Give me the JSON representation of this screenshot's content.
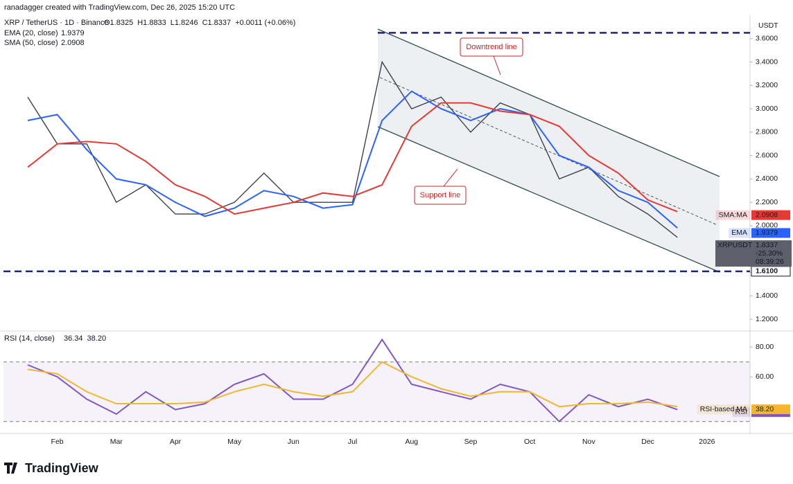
{
  "header": {
    "credit": "ranadagger created with TradingView.com, Dec 26, 2025 15:20 UTC",
    "symbol": "XRP / TetherUS · 1D · Binance",
    "ohlc": [
      "O1.8325",
      "H1.8833",
      "L1.8246",
      "C1.8337",
      "+0.0011 (+0.06%)"
    ],
    "currency": "USDT",
    "logo": "TradingView"
  },
  "chart_data": [
    {
      "type": "line",
      "title": "XRPUSDT",
      "categories": [
        null,
        "Feb",
        null,
        "Mar",
        null,
        "Apr",
        null,
        "May",
        null,
        "Jun",
        null,
        "Jul",
        null,
        "Aug",
        null,
        "Sep",
        null,
        "Oct",
        null,
        "Nov",
        null,
        "Dec",
        null,
        "2026"
      ],
      "ylim": [
        1.147,
        3.8
      ],
      "yticks": [
        {
          "value": 1.2,
          "label": "1.2000"
        },
        {
          "value": 1.4,
          "label": "1.4000"
        },
        {
          "value": 1.6,
          "label": "1.6000"
        },
        {
          "value": 1.8,
          "label": "1.8000"
        },
        {
          "value": 2.0,
          "label": "2.0000"
        },
        {
          "value": 2.2,
          "label": "2.2000"
        },
        {
          "value": 2.4,
          "label": "2.4000"
        },
        {
          "value": 2.6,
          "label": "2.6000"
        },
        {
          "value": 2.8,
          "label": "2.8000"
        },
        {
          "value": 3.0,
          "label": "3.0000"
        },
        {
          "value": 3.2,
          "label": "3.2000"
        },
        {
          "value": 3.4,
          "label": "3.4000"
        },
        {
          "value": 3.6,
          "label": "3.6000"
        }
      ],
      "series": [
        {
          "name": "XRPUSDT",
          "color": "#3a3f4b",
          "values": [
            3.1,
            2.7,
            2.7,
            2.2,
            2.35,
            2.1,
            2.1,
            2.2,
            2.45,
            2.2,
            2.2,
            2.2,
            3.4,
            3.0,
            3.1,
            2.8,
            3.05,
            2.95,
            2.4,
            2.5,
            2.25,
            2.1,
            1.9,
            null
          ],
          "last": 1.8337,
          "change": "-25.30%",
          "countdown": "08:39:26"
        },
        {
          "name": "EMA (20, close)",
          "badge": "EMA",
          "color": "#2962ff",
          "last": 1.9379,
          "values": [
            2.9,
            2.95,
            2.65,
            2.4,
            2.35,
            2.2,
            2.08,
            2.15,
            2.3,
            2.25,
            2.15,
            2.18,
            2.9,
            3.15,
            3.0,
            2.9,
            3.0,
            2.95,
            2.6,
            2.5,
            2.3,
            2.2,
            1.98,
            null
          ]
        },
        {
          "name": "SMA (50, close)",
          "badge": "SMA:MA",
          "color": "#e53935",
          "last": 2.0908,
          "values": [
            2.5,
            2.7,
            2.72,
            2.7,
            2.55,
            2.35,
            2.25,
            2.1,
            2.15,
            2.2,
            2.28,
            2.25,
            2.35,
            2.85,
            3.05,
            3.05,
            2.98,
            2.95,
            2.85,
            2.6,
            2.45,
            2.22,
            2.12,
            null
          ]
        }
      ],
      "resistance": 3.65,
      "support": {
        "value": 1.61,
        "label": "1.6100"
      },
      "annotations": [
        "Downtrend line",
        "Support line"
      ]
    },
    {
      "type": "line",
      "title": "RSI (14, close)",
      "ylim": [
        22,
        88
      ],
      "yticks": [
        {
          "value": 60,
          "label": "60.00"
        },
        {
          "value": 80,
          "label": "80.00"
        }
      ],
      "bands": [
        30,
        70
      ],
      "series": [
        {
          "name": "RSI",
          "color": "#7e57c2",
          "last": 36.34,
          "values": [
            68,
            60,
            45,
            35,
            50,
            38,
            42,
            55,
            62,
            45,
            45,
            55,
            85,
            55,
            50,
            45,
            55,
            50,
            30,
            48,
            40,
            45,
            38,
            null
          ]
        },
        {
          "name": "RSI-based MA",
          "color": "#f2b632",
          "last": {
            "value": 38.2,
            "label": "38.20"
          },
          "values": [
            65,
            62,
            50,
            42,
            42,
            42,
            43,
            50,
            55,
            50,
            47,
            50,
            70,
            60,
            52,
            47,
            50,
            50,
            40,
            42,
            42,
            43,
            40,
            null
          ]
        }
      ]
    }
  ]
}
